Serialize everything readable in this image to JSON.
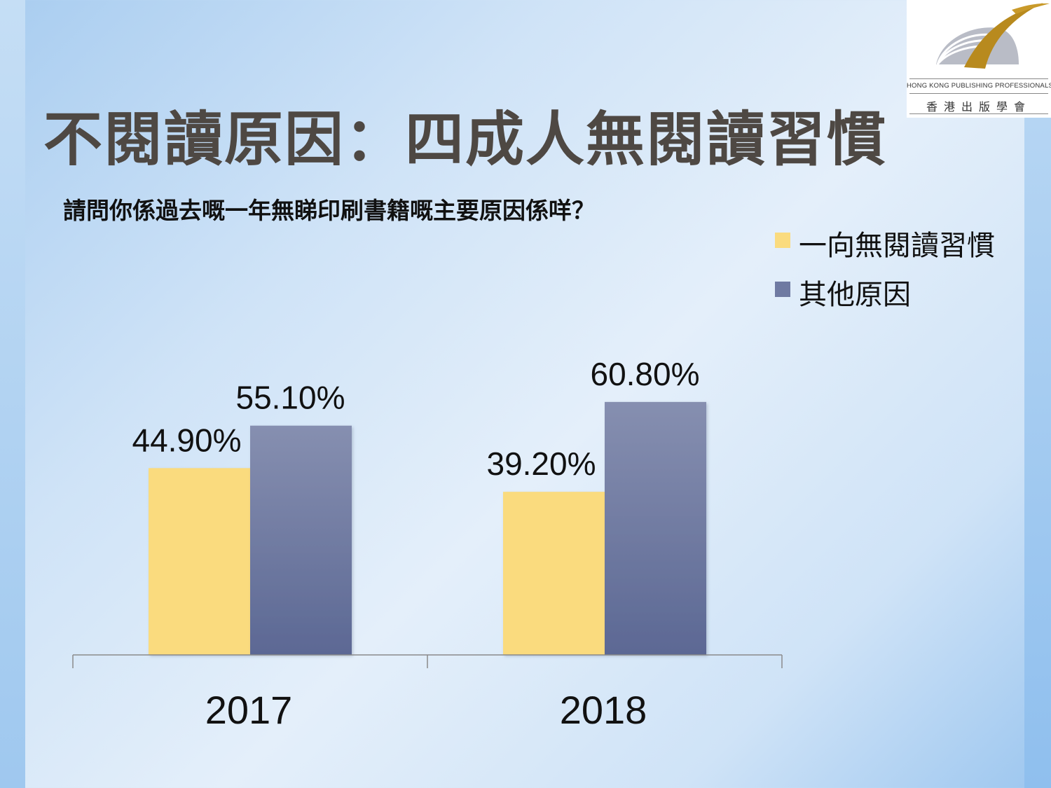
{
  "slide": {
    "title": "不閱讀原因：四成人無閱讀習慣",
    "question": "請問你係過去嘅一年無睇印刷書籍嘅主要原因係咩？"
  },
  "logo": {
    "english": "HONG KONG PUBLISHING PROFESSIONALS SOCIETY",
    "chinese": "香港出版學會"
  },
  "colors": {
    "series_habit": "#fadb7e",
    "series_other_top": "#868fb0",
    "series_other_bottom": "#5c6894",
    "axis": "#8a8a8a",
    "title": "#4e4843"
  },
  "chart_data": {
    "type": "bar",
    "categories": [
      "2017",
      "2018"
    ],
    "series": [
      {
        "name": "一向無閱讀習慣",
        "values": [
          44.9,
          39.2
        ],
        "labels": [
          "44.90%",
          "39.20%"
        ],
        "color": "#fadb7e"
      },
      {
        "name": "其他原因",
        "values": [
          55.1,
          60.8
        ],
        "labels": [
          "55.10%",
          "60.80%"
        ],
        "color": "#7580a6"
      }
    ],
    "ylim": [
      0,
      100
    ],
    "xlabel": "",
    "ylabel": "",
    "grid": false,
    "legend_position": "top-right"
  }
}
